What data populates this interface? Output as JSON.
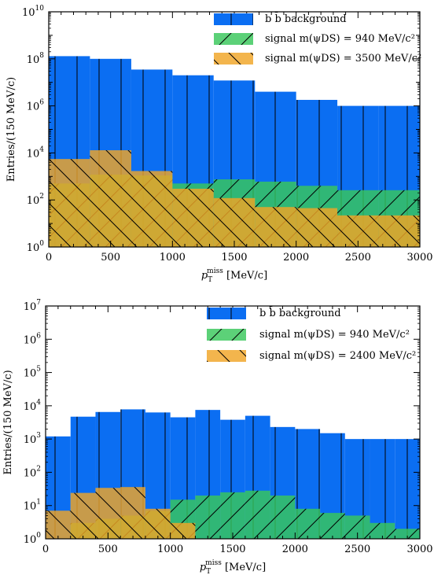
{
  "colors": {
    "background": "#0b6ef2",
    "signal_a": "#38c75a",
    "signal_b": "#f0a526"
  },
  "chart_data": [
    {
      "type": "histogram",
      "y_scale": "log",
      "xlim": [
        0,
        3000
      ],
      "ylim": [
        1,
        10000000000
      ],
      "x_ticks": [
        0,
        500,
        1000,
        1500,
        2000,
        2500,
        3000
      ],
      "y_ticks": [
        1,
        100,
        10000,
        1000000,
        100000000,
        10000000000
      ],
      "y_tick_labels": [
        [
          "10",
          "0"
        ],
        [
          "10",
          "2"
        ],
        [
          "10",
          "4"
        ],
        [
          "10",
          "6"
        ],
        [
          "10",
          "8"
        ],
        [
          "10",
          "10"
        ]
      ],
      "xlabel": "p_T^miss [MeV/c]",
      "ylabel": "Entries/(150 MeV/c)",
      "bin_edges": [
        0,
        333,
        667,
        1000,
        1333,
        1667,
        2000,
        2333,
        2667,
        3000
      ],
      "legend": [
        {
          "label": "b b̄ background"
        },
        {
          "label": "signal m(ψDS) = 940 MeV/c²"
        },
        {
          "label": "signal m(ψDS) = 3500 MeV/c²"
        }
      ],
      "series": [
        {
          "name": "b b̄ background",
          "color_key": "background",
          "hatch": "vertical",
          "values": [
            130000000,
            100000000,
            35000000,
            20000000,
            12000000,
            4000000,
            1800000,
            1000000,
            1000000
          ]
        },
        {
          "name": "signal m(ψDS) = 940 MeV/c²",
          "color_key": "signal_a",
          "hatch": "forward",
          "values": [
            500,
            1200,
            1100,
            500,
            750,
            600,
            400,
            260,
            260
          ]
        },
        {
          "name": "signal m(ψDS) = 3500 MeV/c²",
          "color_key": "signal_b",
          "hatch": "backward",
          "values": [
            5500,
            13000,
            1700,
            300,
            120,
            50,
            45,
            22,
            22
          ]
        }
      ]
    },
    {
      "type": "histogram",
      "y_scale": "log",
      "xlim": [
        0,
        3000
      ],
      "ylim": [
        1,
        10000000
      ],
      "x_ticks": [
        0,
        500,
        1000,
        1500,
        2000,
        2500,
        3000
      ],
      "y_ticks": [
        1,
        10,
        100,
        1000,
        10000,
        100000,
        1000000,
        10000000
      ],
      "y_tick_labels": [
        [
          "10",
          "0"
        ],
        [
          "10",
          "1"
        ],
        [
          "10",
          "2"
        ],
        [
          "10",
          "3"
        ],
        [
          "10",
          "4"
        ],
        [
          "10",
          "5"
        ],
        [
          "10",
          "6"
        ],
        [
          "10",
          "7"
        ]
      ],
      "xlabel": "p_T^miss[MeV/c]",
      "ylabel": "Entries/(150 MeV/c)",
      "bin_edges": [
        0,
        200,
        400,
        600,
        800,
        1000,
        1200,
        1400,
        1600,
        1800,
        2000,
        2200,
        2400,
        2600,
        2800,
        3000
      ],
      "legend": [
        {
          "label": "b b̄ background"
        },
        {
          "label": "signal m(ψDS) = 940 MeV/c²"
        },
        {
          "label": "signal m(ψDS) = 2400 MeV/c²"
        }
      ],
      "series": [
        {
          "name": "b b̄ background",
          "color_key": "background",
          "hatch": "vertical",
          "values": [
            1200,
            4700,
            6500,
            7800,
            6300,
            4500,
            7500,
            3800,
            5000,
            2300,
            2000,
            1500,
            1000,
            1000,
            1000
          ]
        },
        {
          "name": "signal m(ψDS) = 940 MeV/c²",
          "color_key": "signal_a",
          "hatch": "forward",
          "values": [
            1,
            3,
            4,
            5,
            7,
            15,
            20,
            25,
            28,
            20,
            8,
            6,
            5,
            3,
            2
          ]
        },
        {
          "name": "signal m(ψDS) = 2400 MeV/c²",
          "color_key": "signal_b",
          "hatch": "backward",
          "values": [
            7,
            24,
            34,
            36,
            8,
            3,
            1,
            1,
            1,
            1,
            1,
            1,
            1,
            1,
            1
          ]
        }
      ]
    }
  ]
}
